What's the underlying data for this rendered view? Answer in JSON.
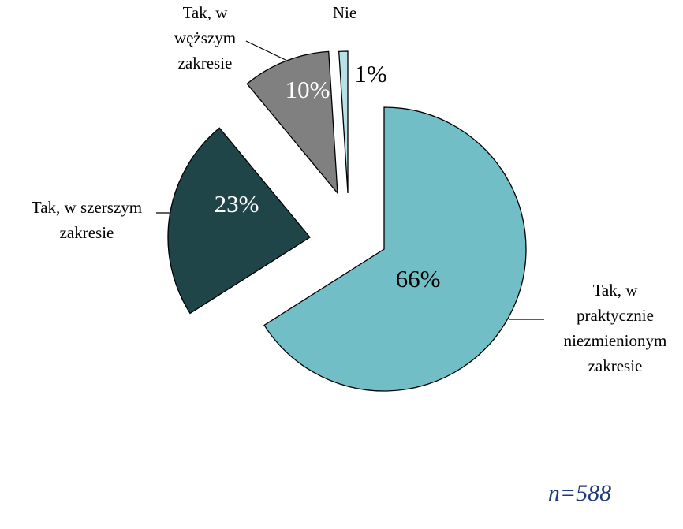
{
  "chart_data": {
    "type": "pie",
    "categories": [
      "Tak, w\npraktycznie\nniezmienionym\nzakresie",
      "Tak, w szerszym\nzakresie",
      "Tak,  w\nwęższym\nzakresie",
      "Nie"
    ],
    "values": [
      66,
      23,
      10,
      1
    ],
    "value_labels": [
      "66%",
      "23%",
      "10%",
      "1%"
    ],
    "colors": [
      "#72bec6",
      "#1f4548",
      "#808080",
      "#b7e1e6"
    ],
    "annotation": "n=588"
  }
}
